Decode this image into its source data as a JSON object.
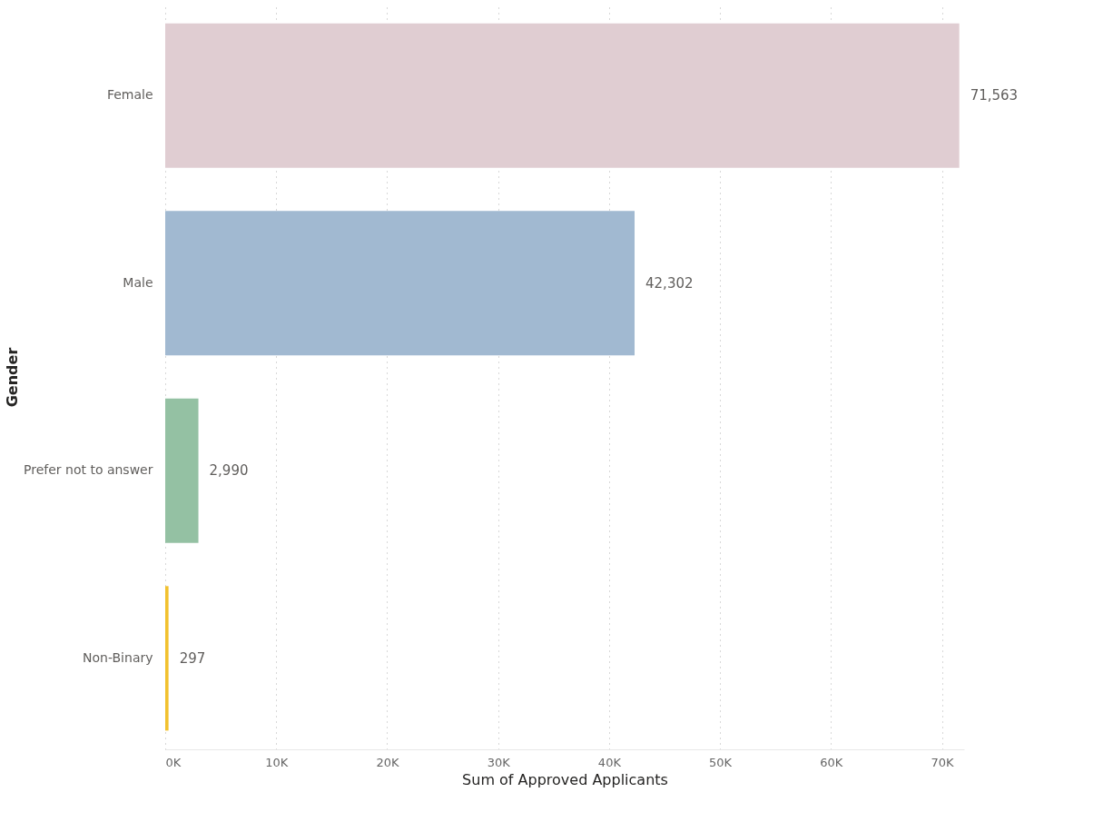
{
  "chart_data": {
    "type": "bar",
    "orientation": "horizontal",
    "xlabel": "Sum of Approved Applicants",
    "ylabel": "Gender",
    "categories": [
      "Female",
      "Male",
      "Prefer not to answer",
      "Non-Binary"
    ],
    "values": [
      71563,
      42302,
      2990,
      297
    ],
    "colors": [
      "#e0cdd2",
      "#a1b9d1",
      "#94c1a3",
      "#f2c12e"
    ],
    "xlim": [
      0,
      72000
    ],
    "xticks": [
      {
        "value": 0,
        "label": "0K"
      },
      {
        "value": 10000,
        "label": "10K"
      },
      {
        "value": 20000,
        "label": "20K"
      },
      {
        "value": 30000,
        "label": "30K"
      },
      {
        "value": 40000,
        "label": "40K"
      },
      {
        "value": 50000,
        "label": "50K"
      },
      {
        "value": 60000,
        "label": "60K"
      },
      {
        "value": 70000,
        "label": "70K"
      }
    ],
    "value_labels": [
      "71,563",
      "42,302",
      "2,990",
      "297"
    ],
    "grid": "x",
    "legend": false
  }
}
